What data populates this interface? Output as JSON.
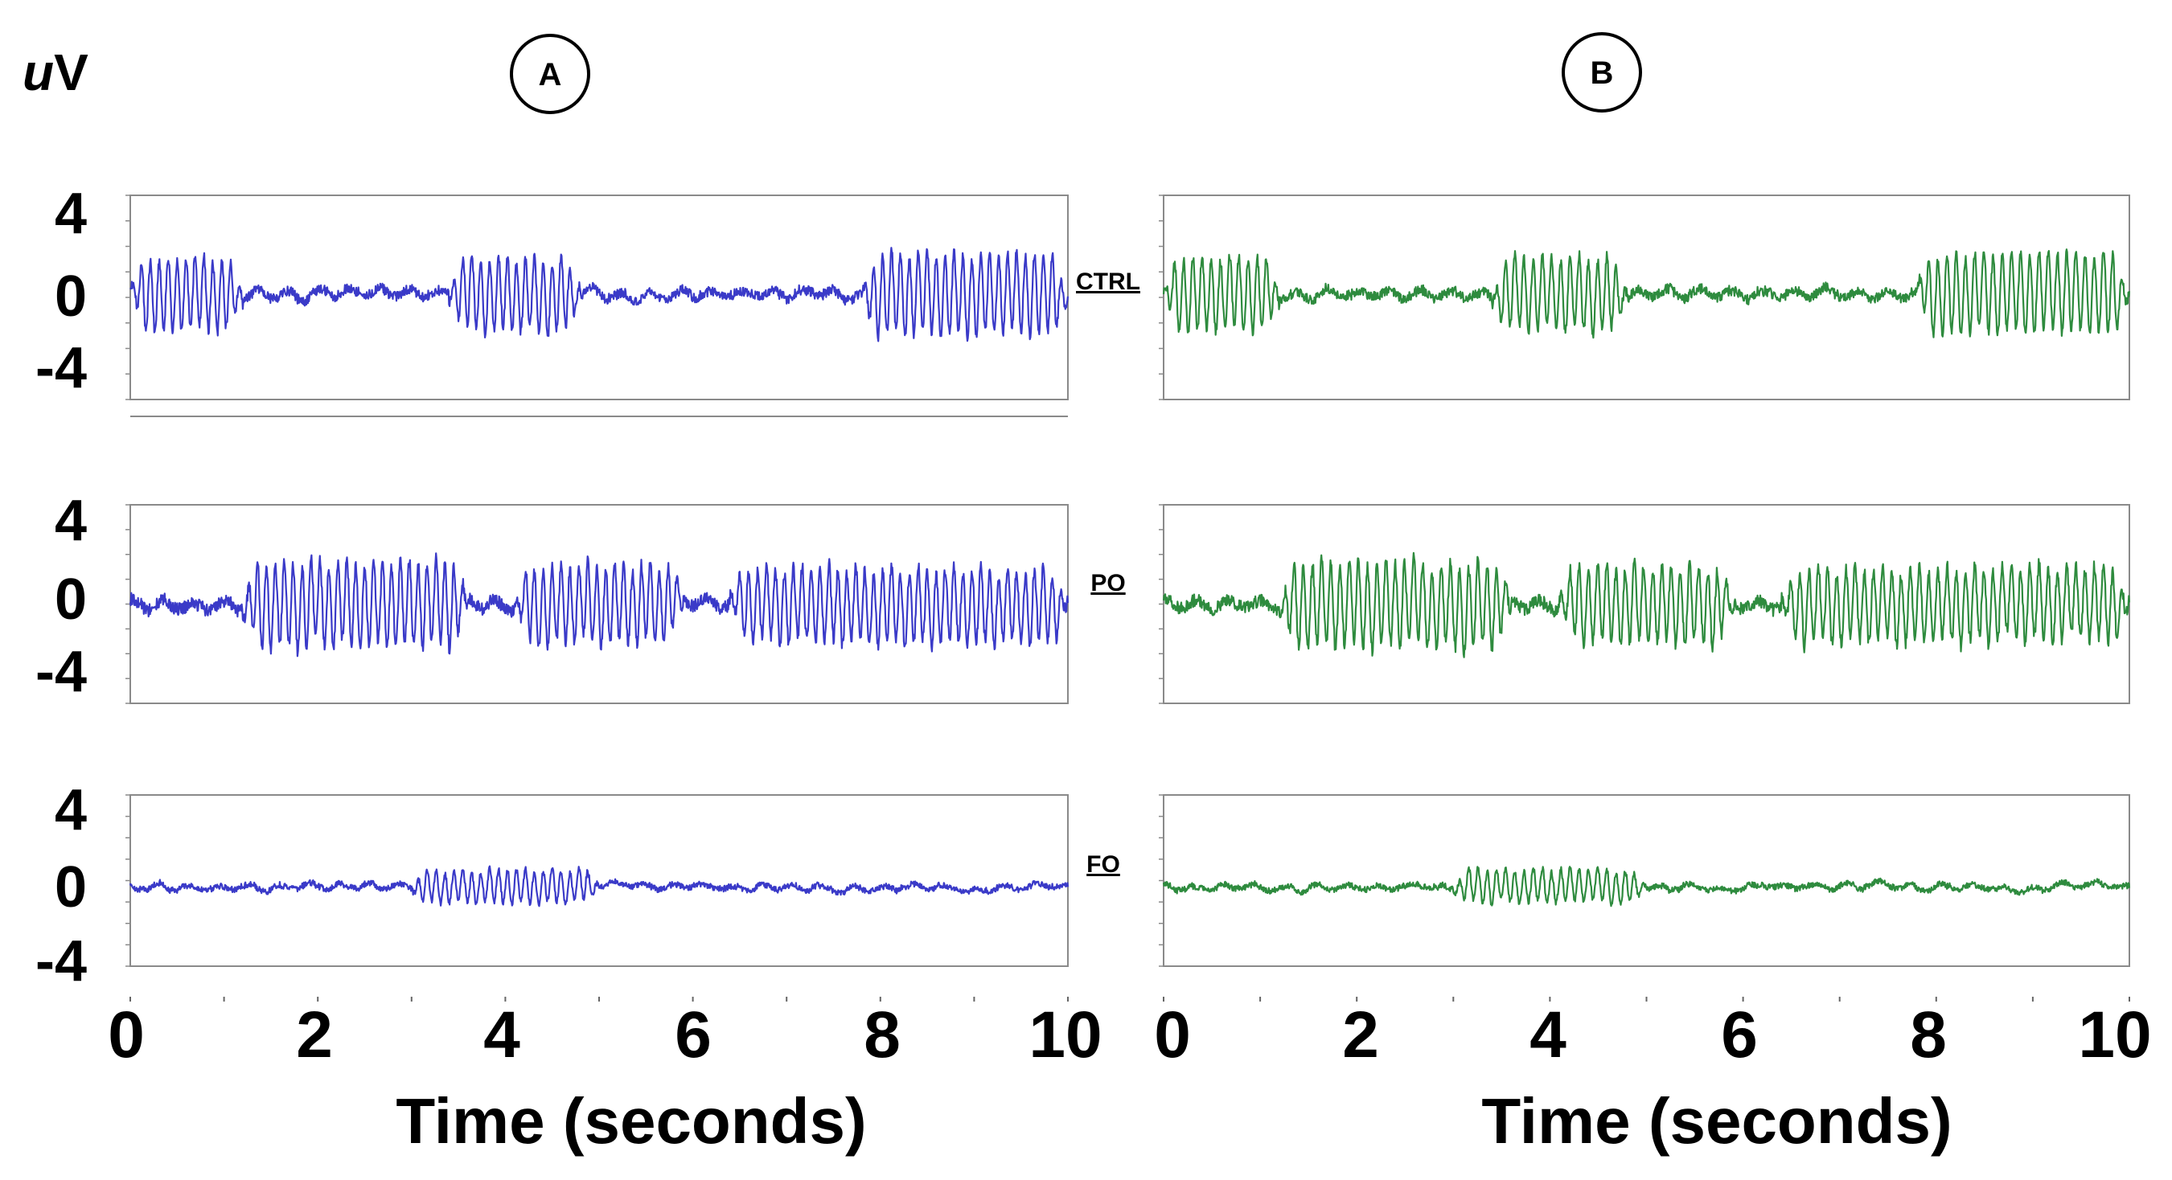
{
  "figure": {
    "unit_label_italic": "u",
    "unit_label_rest": "V",
    "panels": [
      {
        "id": "A",
        "trace_color": "#3a3ac8"
      },
      {
        "id": "B",
        "trace_color": "#2e8b3e"
      }
    ],
    "row_labels": [
      "CTRL",
      "PO",
      "FO"
    ],
    "x_axis_label": "Time (seconds)"
  },
  "chart_data": {
    "type": "line",
    "title": "",
    "xlabel": "Time (seconds)",
    "ylabel": "uV",
    "xlim": [
      0,
      10
    ],
    "ylim": [
      -5.5,
      5.5
    ],
    "x_ticks": [
      "0",
      "2",
      "4",
      "6",
      "8",
      "10"
    ],
    "y_ticks": [
      "4",
      "0",
      "-4"
    ],
    "panels": [
      "A",
      "B"
    ],
    "series": [
      {
        "name": "CTRL",
        "bursts": [
          [
            0,
            1.2,
            2.0
          ],
          [
            3.4,
            4.8,
            2.0
          ],
          [
            7.8,
            10.0,
            2.2
          ]
        ],
        "baseline_noise": 0.35
      },
      {
        "name": "PO",
        "bursts": [
          [
            1.2,
            3.6,
            2.3
          ],
          [
            4.1,
            5.9,
            2.1
          ],
          [
            6.4,
            10.0,
            2.0
          ]
        ],
        "baseline_noise": 0.45
      },
      {
        "name": "FO",
        "bursts": [
          [
            3.0,
            5.0,
            0.9
          ]
        ],
        "baseline_noise": 0.2
      }
    ]
  }
}
